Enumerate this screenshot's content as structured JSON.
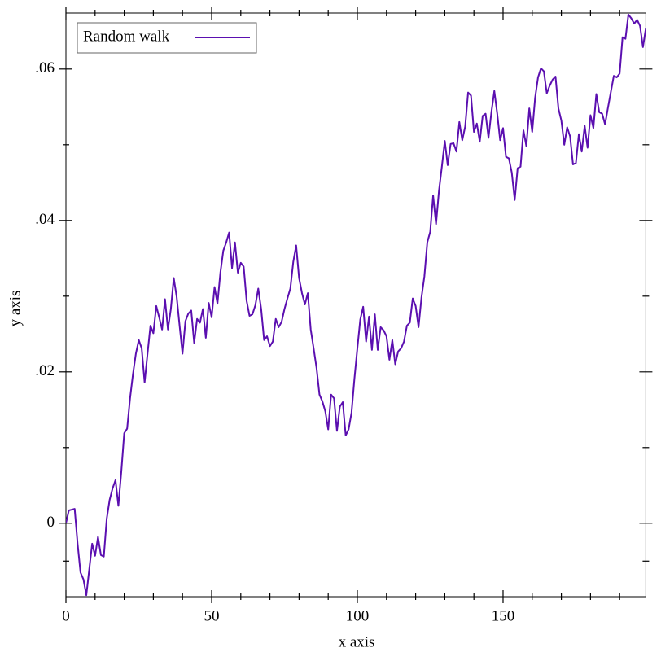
{
  "chart_data": {
    "type": "line",
    "xlabel": "x axis",
    "ylabel": "y axis",
    "x": [
      0,
      1,
      2,
      3,
      4,
      5,
      6,
      7,
      8,
      9,
      10,
      11,
      12,
      13,
      14,
      15,
      16,
      17,
      18,
      19,
      20,
      21,
      22,
      23,
      24,
      25,
      26,
      27,
      28,
      29,
      30,
      31,
      32,
      33,
      34,
      35,
      36,
      37,
      38,
      39,
      40,
      41,
      42,
      43,
      44,
      45,
      46,
      47,
      48,
      49,
      50,
      51,
      52,
      53,
      54,
      55,
      56,
      57,
      58,
      59,
      60,
      61,
      62,
      63,
      64,
      65,
      66,
      67,
      68,
      69,
      70,
      71,
      72,
      73,
      74,
      75,
      76,
      77,
      78,
      79,
      80,
      81,
      82,
      83,
      84,
      85,
      86,
      87,
      88,
      89,
      90,
      91,
      92,
      93,
      94,
      95,
      96,
      97,
      98,
      99,
      100,
      101,
      102,
      103,
      104,
      105,
      106,
      107,
      108,
      109,
      110,
      111,
      112,
      113,
      114,
      115,
      116,
      117,
      118,
      119,
      120,
      121,
      122,
      123,
      124,
      125,
      126,
      127,
      128,
      129,
      130,
      131,
      132,
      133,
      134,
      135,
      136,
      137,
      138,
      139,
      140,
      141,
      142,
      143,
      144,
      145,
      146,
      147,
      148,
      149,
      150,
      151,
      152,
      153,
      154,
      155,
      156,
      157,
      158,
      159,
      160,
      161,
      162,
      163,
      164,
      165,
      166,
      167,
      168,
      169,
      170,
      171,
      172,
      173,
      174,
      175,
      176,
      177,
      178,
      179,
      180,
      181,
      182,
      183,
      184,
      185,
      186,
      187,
      188,
      189,
      190,
      191,
      192,
      193,
      194,
      195,
      196,
      197,
      198,
      199
    ],
    "series": [
      {
        "name": "Random walk",
        "color": "#5b0fb0",
        "values": [
          0,
          0.0017,
          0.0018,
          0.0019,
          -0.0027,
          -0.0065,
          -0.0074,
          -0.0095,
          -0.0061,
          -0.0027,
          -0.0043,
          -0.0018,
          -0.0042,
          -0.0044,
          0.0006,
          0.0031,
          0.0046,
          0.0057,
          0.0023,
          0.0068,
          0.0119,
          0.0125,
          0.0165,
          0.0197,
          0.0224,
          0.0242,
          0.0231,
          0.0186,
          0.0224,
          0.0261,
          0.0251,
          0.0287,
          0.0272,
          0.0256,
          0.0296,
          0.0256,
          0.0283,
          0.0324,
          0.0299,
          0.0261,
          0.0224,
          0.0267,
          0.0277,
          0.0281,
          0.0238,
          0.027,
          0.0265,
          0.0283,
          0.0245,
          0.0291,
          0.0272,
          0.0312,
          0.029,
          0.0331,
          0.036,
          0.0371,
          0.0384,
          0.0337,
          0.0371,
          0.0331,
          0.0344,
          0.0339,
          0.0294,
          0.0274,
          0.0276,
          0.0288,
          0.031,
          0.0283,
          0.0242,
          0.0247,
          0.0234,
          0.024,
          0.027,
          0.0259,
          0.0266,
          0.0283,
          0.0297,
          0.031,
          0.0345,
          0.0367,
          0.0324,
          0.0304,
          0.0289,
          0.0304,
          0.0256,
          0.0231,
          0.0205,
          0.017,
          0.0161,
          0.0148,
          0.0124,
          0.017,
          0.0165,
          0.0122,
          0.0154,
          0.016,
          0.0116,
          0.0124,
          0.0146,
          0.0191,
          0.0231,
          0.0269,
          0.0286,
          0.024,
          0.0273,
          0.0229,
          0.0276,
          0.0229,
          0.0259,
          0.0255,
          0.0247,
          0.0216,
          0.0242,
          0.021,
          0.0227,
          0.0231,
          0.024,
          0.0261,
          0.0265,
          0.0297,
          0.0287,
          0.0259,
          0.0298,
          0.0326,
          0.0371,
          0.0385,
          0.0433,
          0.0395,
          0.0439,
          0.0471,
          0.0505,
          0.0473,
          0.0501,
          0.0502,
          0.0491,
          0.053,
          0.0506,
          0.0524,
          0.0569,
          0.0565,
          0.0517,
          0.0528,
          0.0504,
          0.0538,
          0.0541,
          0.0509,
          0.0543,
          0.0571,
          0.0541,
          0.0506,
          0.0522,
          0.0484,
          0.0482,
          0.0463,
          0.0427,
          0.0469,
          0.0471,
          0.0519,
          0.0498,
          0.0548,
          0.0517,
          0.0562,
          0.0589,
          0.0601,
          0.0597,
          0.0568,
          0.0578,
          0.0586,
          0.059,
          0.0548,
          0.0532,
          0.05,
          0.0523,
          0.0511,
          0.0474,
          0.0476,
          0.0514,
          0.0491,
          0.0525,
          0.0496,
          0.0539,
          0.0522,
          0.0567,
          0.0543,
          0.0541,
          0.0527,
          0.0549,
          0.057,
          0.0591,
          0.0589,
          0.0594,
          0.0642,
          0.064,
          0.0672,
          0.0667,
          0.066,
          0.0665,
          0.0657,
          0.0629,
          0.0654
        ]
      }
    ],
    "xlim": [
      0,
      199
    ],
    "ylim": [
      -0.0097,
      0.0674
    ],
    "xticks": [
      0,
      50,
      100,
      150
    ],
    "xminorticks": [
      10,
      20,
      30,
      40,
      60,
      70,
      80,
      90,
      110,
      120,
      130,
      140,
      160,
      170,
      180,
      190
    ],
    "yticks": [
      0,
      {
        "value": 0.02,
        "label": ".02"
      },
      {
        "value": 0.04,
        "label": ".04"
      },
      {
        "value": 0.06,
        "label": ".06"
      }
    ],
    "yminorticks": [
      -0.005,
      0.01,
      0.03,
      0.05
    ],
    "legend": "top-left"
  }
}
